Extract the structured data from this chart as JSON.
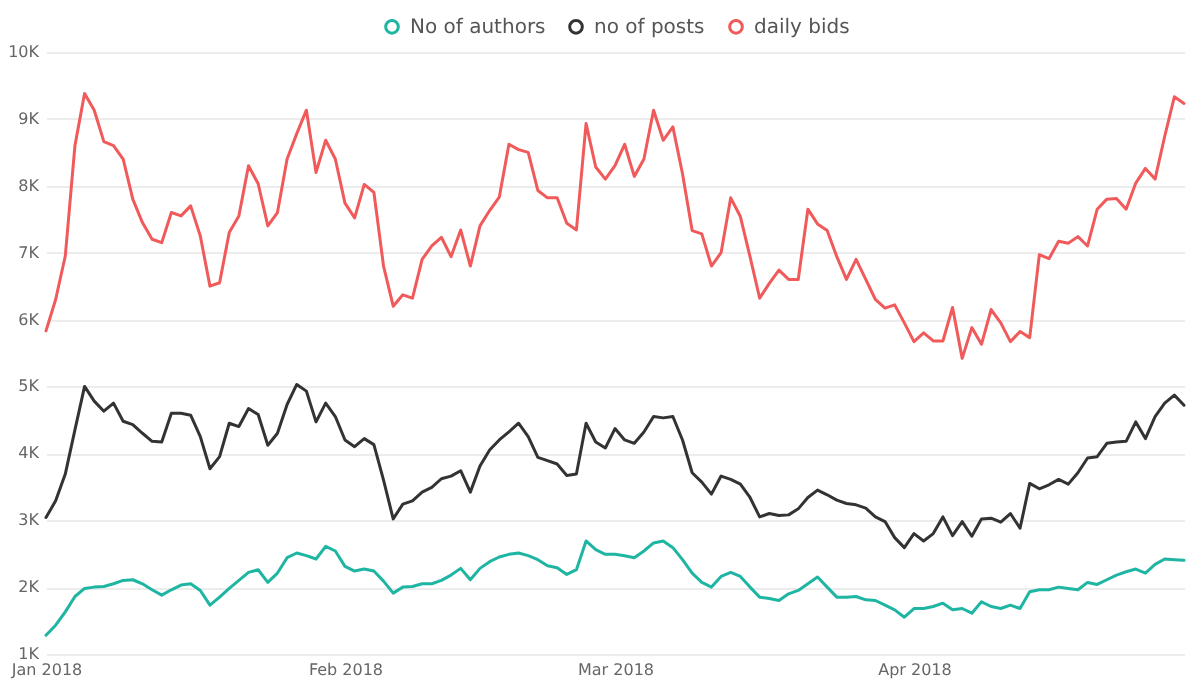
{
  "chart_data": {
    "type": "line",
    "legend": "top",
    "grid": "y",
    "x": [
      "2018-01-01",
      "2018-01-02",
      "2018-01-03",
      "2018-01-04",
      "2018-01-05",
      "2018-01-06",
      "2018-01-07",
      "2018-01-08",
      "2018-01-09",
      "2018-01-10",
      "2018-01-11",
      "2018-01-12",
      "2018-01-13",
      "2018-01-14",
      "2018-01-15",
      "2018-01-16",
      "2018-01-17",
      "2018-01-18",
      "2018-01-19",
      "2018-01-20",
      "2018-01-21",
      "2018-01-22",
      "2018-01-23",
      "2018-01-24",
      "2018-01-25",
      "2018-01-26",
      "2018-01-27",
      "2018-01-28",
      "2018-01-29",
      "2018-01-30",
      "2018-01-31",
      "2018-02-01",
      "2018-02-02",
      "2018-02-03",
      "2018-02-04",
      "2018-02-05",
      "2018-02-06",
      "2018-02-07",
      "2018-02-08",
      "2018-02-09",
      "2018-02-10",
      "2018-02-11",
      "2018-02-12",
      "2018-02-13",
      "2018-02-14",
      "2018-02-15",
      "2018-02-16",
      "2018-02-17",
      "2018-02-18",
      "2018-02-19",
      "2018-02-20",
      "2018-02-21",
      "2018-02-22",
      "2018-02-23",
      "2018-02-24",
      "2018-02-25",
      "2018-02-26",
      "2018-02-27",
      "2018-02-28",
      "2018-03-01",
      "2018-03-02",
      "2018-03-03",
      "2018-03-04",
      "2018-03-05",
      "2018-03-06",
      "2018-03-07",
      "2018-03-08",
      "2018-03-09",
      "2018-03-10",
      "2018-03-11",
      "2018-03-12",
      "2018-03-13",
      "2018-03-14",
      "2018-03-15",
      "2018-03-16",
      "2018-03-17",
      "2018-03-18",
      "2018-03-19",
      "2018-03-20",
      "2018-03-21",
      "2018-03-22",
      "2018-03-23",
      "2018-03-24",
      "2018-03-25",
      "2018-03-26",
      "2018-03-27",
      "2018-03-28",
      "2018-03-29",
      "2018-03-30",
      "2018-03-31",
      "2018-04-01",
      "2018-04-02",
      "2018-04-03",
      "2018-04-04",
      "2018-04-05",
      "2018-04-06",
      "2018-04-07",
      "2018-04-08",
      "2018-04-09",
      "2018-04-10",
      "2018-04-11",
      "2018-04-12",
      "2018-04-13",
      "2018-04-14",
      "2018-04-15",
      "2018-04-16",
      "2018-04-17",
      "2018-04-18",
      "2018-04-19",
      "2018-04-20",
      "2018-04-21",
      "2018-04-22",
      "2018-04-23",
      "2018-04-24",
      "2018-04-25",
      "2018-04-26",
      "2018-04-27",
      "2018-04-28",
      "2018-04-29"
    ],
    "xlim": [
      "2018-01-01",
      "2018-04-29"
    ],
    "xticks": [
      {
        "value": "2018-01-01",
        "label": "Jan 2018"
      },
      {
        "value": "2018-02-01",
        "label": "Feb 2018"
      },
      {
        "value": "2018-03-01",
        "label": "Mar 2018"
      },
      {
        "value": "2018-04-01",
        "label": "Apr 2018"
      }
    ],
    "ylim": [
      1000,
      10000
    ],
    "yticks": [
      {
        "value": 1000,
        "label": "1K"
      },
      {
        "value": 2000,
        "label": "2K"
      },
      {
        "value": 3000,
        "label": "3K"
      },
      {
        "value": 4000,
        "label": "4K"
      },
      {
        "value": 5000,
        "label": "5K"
      },
      {
        "value": 6000,
        "label": "6K"
      },
      {
        "value": 7000,
        "label": "7K"
      },
      {
        "value": 8000,
        "label": "8K"
      },
      {
        "value": 9000,
        "label": "9K"
      },
      {
        "value": 10000,
        "label": "10K"
      }
    ],
    "series": [
      {
        "name": "No of authors",
        "color": "#1fb5a3",
        "values": [
          1280,
          1430,
          1630,
          1860,
          1980,
          2000,
          2010,
          2050,
          2100,
          2110,
          2050,
          1960,
          1880,
          1960,
          2030,
          2050,
          1950,
          1730,
          1850,
          1980,
          2100,
          2220,
          2260,
          2070,
          2210,
          2440,
          2510,
          2470,
          2420,
          2610,
          2540,
          2310,
          2240,
          2270,
          2240,
          2090,
          1910,
          2000,
          2010,
          2050,
          2050,
          2100,
          2180,
          2280,
          2110,
          2280,
          2380,
          2450,
          2490,
          2510,
          2470,
          2410,
          2320,
          2290,
          2190,
          2260,
          2690,
          2560,
          2490,
          2490,
          2470,
          2440,
          2540,
          2660,
          2690,
          2590,
          2410,
          2210,
          2070,
          2000,
          2160,
          2220,
          2160,
          2000,
          1850,
          1830,
          1800,
          1900,
          1950,
          2050,
          2150,
          2000,
          1850,
          1850,
          1860,
          1810,
          1800,
          1730,
          1660,
          1550,
          1680,
          1680,
          1710,
          1760,
          1660,
          1680,
          1610,
          1780,
          1710,
          1680,
          1730,
          1680,
          1930,
          1960,
          1960,
          2000,
          1980,
          1960,
          2070,
          2040,
          2110,
          2180,
          2230,
          2270,
          2210,
          2340,
          2420,
          2410,
          2400
        ]
      },
      {
        "name": "no of posts",
        "color": "#333333",
        "values": [
          3040,
          3290,
          3690,
          4350,
          5000,
          4780,
          4630,
          4750,
          4480,
          4430,
          4300,
          4180,
          4170,
          4600,
          4600,
          4570,
          4250,
          3770,
          3950,
          4450,
          4400,
          4670,
          4580,
          4120,
          4300,
          4730,
          5030,
          4930,
          4470,
          4750,
          4550,
          4200,
          4100,
          4220,
          4130,
          3600,
          3020,
          3240,
          3290,
          3420,
          3490,
          3620,
          3660,
          3740,
          3420,
          3810,
          4050,
          4200,
          4320,
          4450,
          4250,
          3940,
          3890,
          3840,
          3670,
          3690,
          4450,
          4170,
          4080,
          4370,
          4200,
          4150,
          4320,
          4550,
          4530,
          4550,
          4200,
          3710,
          3570,
          3390,
          3660,
          3610,
          3540,
          3340,
          3050,
          3100,
          3070,
          3080,
          3170,
          3340,
          3450,
          3380,
          3300,
          3250,
          3230,
          3180,
          3050,
          2980,
          2740,
          2590,
          2800,
          2690,
          2800,
          3050,
          2770,
          2980,
          2760,
          3020,
          3030,
          2970,
          3100,
          2880,
          3550,
          3470,
          3530,
          3610,
          3540,
          3710,
          3930,
          3950,
          4150,
          4170,
          4180,
          4470,
          4220,
          4550,
          4750,
          4870,
          4720
        ]
      },
      {
        "name": "daily bids",
        "color": "#f05a5a",
        "values": [
          5830,
          6300,
          6950,
          8600,
          9380,
          9130,
          8660,
          8600,
          8400,
          7800,
          7450,
          7200,
          7150,
          7600,
          7550,
          7700,
          7250,
          6500,
          6550,
          7300,
          7550,
          8300,
          8030,
          7400,
          7600,
          8400,
          8780,
          9130,
          8200,
          8680,
          8400,
          7740,
          7520,
          8020,
          7900,
          6800,
          6200,
          6370,
          6320,
          6900,
          7100,
          7230,
          6940,
          7340,
          6800,
          7400,
          7630,
          7830,
          8620,
          8540,
          8500,
          7930,
          7820,
          7820,
          7440,
          7340,
          8930,
          8280,
          8100,
          8300,
          8620,
          8140,
          8400,
          9130,
          8680,
          8880,
          8180,
          7330,
          7280,
          6800,
          7000,
          7820,
          7540,
          6940,
          6320,
          6540,
          6740,
          6600,
          6600,
          7650,
          7430,
          7330,
          6940,
          6600,
          6900,
          6600,
          6300,
          6170,
          6220,
          5950,
          5670,
          5800,
          5680,
          5680,
          6180,
          5420,
          5880,
          5630,
          6150,
          5950,
          5670,
          5820,
          5730,
          6970,
          6910,
          7170,
          7140,
          7240,
          7100,
          7650,
          7800,
          7810,
          7650,
          8040,
          8260,
          8100,
          8740,
          9330,
          9230
        ]
      }
    ]
  }
}
